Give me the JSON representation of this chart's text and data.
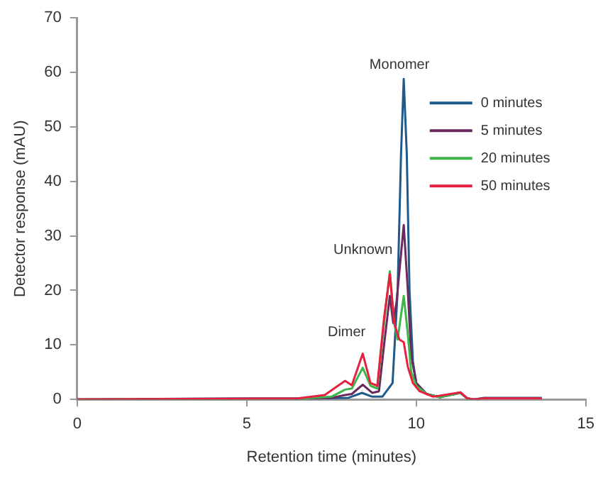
{
  "chart_data": {
    "type": "line",
    "xlabel": "Retention time (minutes)",
    "ylabel": "Detector response (mAU)",
    "xlim": [
      0,
      15
    ],
    "xticks": [
      0,
      5,
      10,
      15
    ],
    "ylim": [
      0,
      70
    ],
    "yticks": [
      0,
      10,
      20,
      30,
      40,
      50,
      60,
      70
    ],
    "grid": false,
    "legend": "top right",
    "marker": "none",
    "line_style": "solid",
    "annotations": [
      {
        "text": "Monomer",
        "x": 9.63,
        "y": 58.8
      },
      {
        "text": "Unknown",
        "x": 9.22,
        "y": 23.5
      },
      {
        "text": "Dimer",
        "x": 8.42,
        "y": 8.4
      }
    ],
    "series": [
      {
        "name": "0 minutes",
        "color": "#1f5a8a",
        "x": [
          0,
          5,
          7,
          8,
          8.4,
          8.7,
          9.0,
          9.3,
          9.45,
          9.55,
          9.63,
          9.72,
          9.8,
          9.9,
          10.0,
          10.3,
          10.7,
          11.3,
          11.5,
          11.7,
          12,
          13.7
        ],
        "values": [
          0,
          0.2,
          0.2,
          0.3,
          1.2,
          0.5,
          0.5,
          3,
          20,
          45,
          58.8,
          45,
          20,
          7,
          3,
          1,
          0.4,
          1.3,
          0.2,
          0,
          0.3,
          0.3
        ]
      },
      {
        "name": "5 minutes",
        "color": "#6b2a5e",
        "x": [
          0,
          6.5,
          7.5,
          7.9,
          8.1,
          8.42,
          8.7,
          8.9,
          9.05,
          9.22,
          9.32,
          9.42,
          9.63,
          9.75,
          9.85,
          10.0,
          10.3,
          10.7,
          11.3,
          11.5,
          11.7,
          12,
          13.7
        ],
        "values": [
          0,
          0,
          0.3,
          0.8,
          1,
          2.7,
          1.2,
          1.5,
          10,
          19,
          14,
          18,
          32,
          20,
          8,
          3,
          1,
          0.4,
          1.2,
          0.2,
          0,
          0.2,
          0.2
        ]
      },
      {
        "name": "20 minutes",
        "color": "#3cb54a",
        "x": [
          0,
          6.5,
          7.5,
          7.9,
          8.1,
          8.42,
          8.65,
          8.85,
          9.05,
          9.22,
          9.35,
          9.45,
          9.63,
          9.75,
          9.85,
          10.0,
          10.3,
          10.7,
          11.3,
          11.5,
          11.7
        ],
        "values": [
          0,
          0.1,
          0.5,
          1.8,
          2,
          5.8,
          2.5,
          2,
          14,
          23.5,
          14,
          11,
          19,
          12,
          5,
          2.5,
          1,
          0.4,
          1.2,
          0.2,
          0
        ]
      },
      {
        "name": "50 minutes",
        "color": "#e8203f",
        "x": [
          0,
          6.5,
          7.3,
          7.9,
          8.1,
          8.42,
          8.65,
          8.85,
          9.05,
          9.22,
          9.35,
          9.5,
          9.63,
          9.75,
          9.9,
          10.1,
          10.5,
          11.3,
          11.5,
          11.7,
          12,
          13.7
        ],
        "values": [
          0,
          0.2,
          0.8,
          3.4,
          2.6,
          8.4,
          3,
          2.5,
          15,
          23,
          14,
          11,
          10.5,
          6,
          3,
          1.5,
          0.5,
          1.3,
          0.2,
          0,
          0.2,
          0.2
        ]
      }
    ]
  }
}
